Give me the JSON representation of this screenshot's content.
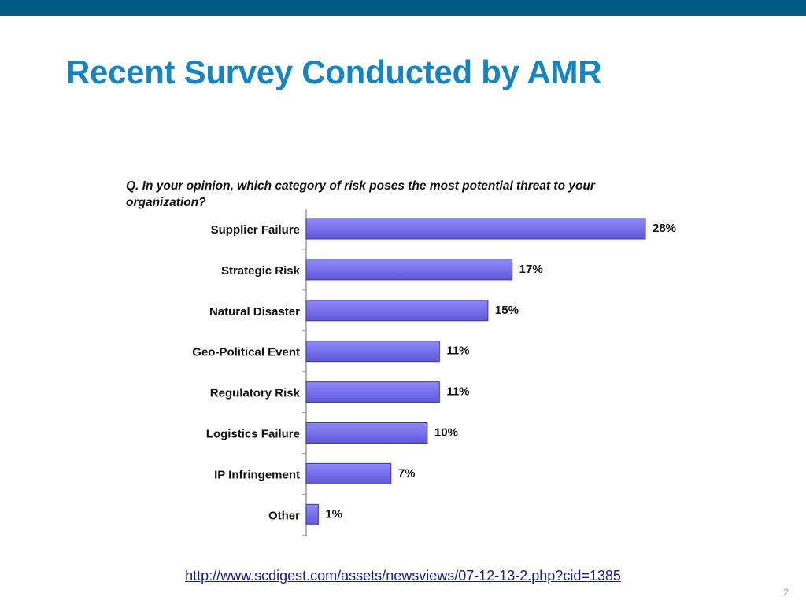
{
  "slide": {
    "title": "Recent Survey Conducted by AMR",
    "source_link": "http://www.scdigest.com/assets/newsviews/07-12-13-2.php?cid=1385",
    "slide_number": "2",
    "accent_color": "#1485c2",
    "top_bar_color": "#005a86"
  },
  "chart_data": {
    "type": "bar",
    "orientation": "horizontal",
    "title": "Q. In your opinion, which category of risk poses the most potential threat to your organization?",
    "categories": [
      "Supplier Failure",
      "Strategic Risk",
      "Natural Disaster",
      "Geo-Political Event",
      "Regulatory Risk",
      "Logistics Failure",
      "IP Infringement",
      "Other"
    ],
    "values": [
      28,
      17,
      15,
      11,
      11,
      10,
      7,
      1
    ],
    "value_labels": [
      "28%",
      "17%",
      "15%",
      "11%",
      "11%",
      "10%",
      "7%",
      "1%"
    ],
    "unit": "%",
    "xlim": [
      0,
      28
    ],
    "grid": false,
    "legend": "none",
    "bar_color": "#7a74ee",
    "bar_edge_color": "#3a3a9a"
  }
}
